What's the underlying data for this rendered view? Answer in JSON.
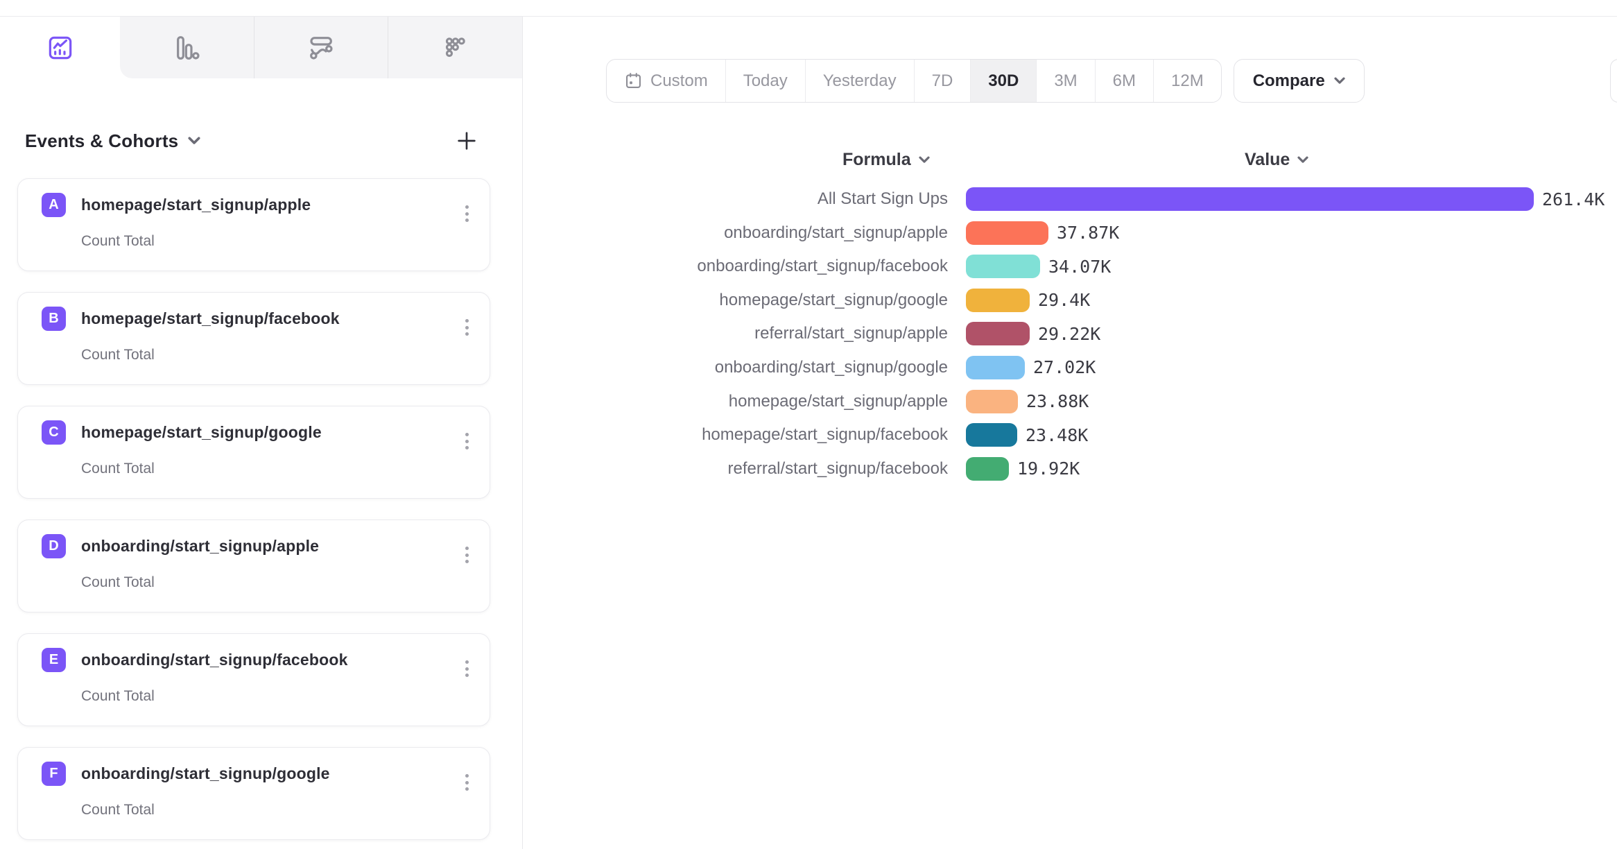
{
  "ui_colors": {
    "accent": "#7b55f7",
    "tab_inactive_bg": "#f4f4f6",
    "selected_range_bg": "#f0f0f2",
    "border": "#e3e3e7"
  },
  "tabs": [
    {
      "icon": "insights-line-chart-icon",
      "active": true
    },
    {
      "icon": "bar-chart-icon",
      "active": false
    },
    {
      "icon": "flows-icon",
      "active": false
    },
    {
      "icon": "retention-dots-icon",
      "active": false
    }
  ],
  "sidebar": {
    "header": {
      "title": "Events & Cohorts"
    },
    "badge_color": "#7b55f7",
    "items": [
      {
        "letter": "A",
        "name": "homepage/start_signup/apple",
        "metric": "Count Total"
      },
      {
        "letter": "B",
        "name": "homepage/start_signup/facebook",
        "metric": "Count Total"
      },
      {
        "letter": "C",
        "name": "homepage/start_signup/google",
        "metric": "Count Total"
      },
      {
        "letter": "D",
        "name": "onboarding/start_signup/apple",
        "metric": "Count Total"
      },
      {
        "letter": "E",
        "name": "onboarding/start_signup/facebook",
        "metric": "Count Total"
      },
      {
        "letter": "F",
        "name": "onboarding/start_signup/google",
        "metric": "Count Total"
      }
    ]
  },
  "toolbar": {
    "date_ranges": [
      "Custom",
      "Today",
      "Yesterday",
      "7D",
      "30D",
      "3M",
      "6M",
      "12M"
    ],
    "selected_range": "30D",
    "compare_label": "Compare"
  },
  "chart": {
    "formula_header": "Formula",
    "value_header": "Value"
  },
  "chart_data": {
    "type": "bar",
    "orientation": "horizontal",
    "categories": [
      "All Start Sign Ups",
      "onboarding/start_signup/apple",
      "onboarding/start_signup/facebook",
      "homepage/start_signup/google",
      "referral/start_signup/apple",
      "onboarding/start_signup/google",
      "homepage/start_signup/apple",
      "homepage/start_signup/facebook",
      "referral/start_signup/facebook"
    ],
    "values": [
      261400,
      37870,
      34070,
      29400,
      29220,
      27020,
      23880,
      23480,
      19920
    ],
    "value_labels": [
      "261.4K",
      "37.87K",
      "34.07K",
      "29.4K",
      "29.22K",
      "27.02K",
      "23.88K",
      "23.48K",
      "19.92K"
    ],
    "colors": [
      "#7b55f7",
      "#fc7358",
      "#80e0d6",
      "#f0b23c",
      "#b05268",
      "#7fc3f2",
      "#fab380",
      "#17789c",
      "#43ac72"
    ],
    "xlim": [
      0,
      261400
    ],
    "title": "",
    "xlabel": "",
    "ylabel": "",
    "grid": false,
    "legend": "none"
  }
}
